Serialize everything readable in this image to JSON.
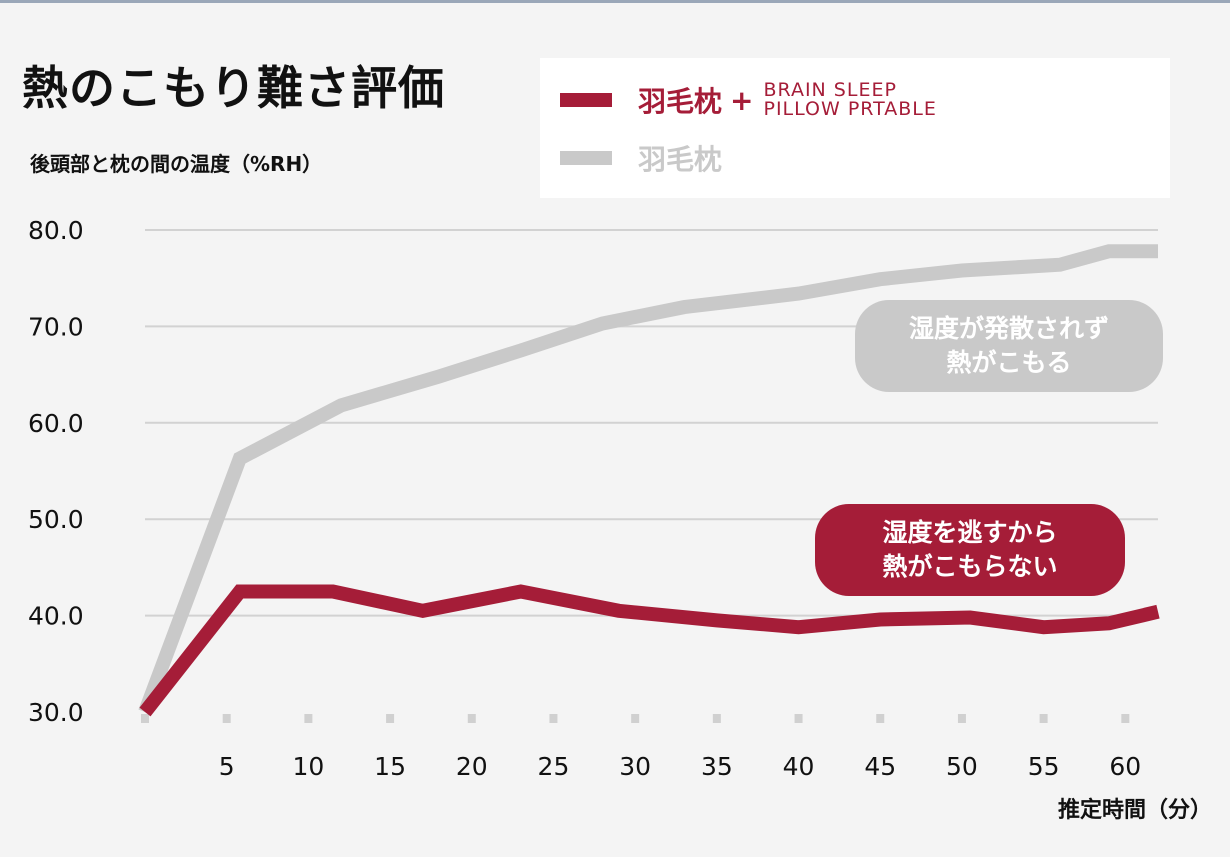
{
  "title": "熱のこもり難さ評価",
  "colors": {
    "red": "#a51d38",
    "gray": "#c9c9c9",
    "grid": "#d2d2d2",
    "tick": "#d0d0d0",
    "text": "#111111"
  },
  "legend": {
    "product": {
      "name": "羽毛枕",
      "plus": "+",
      "sub_line1": "BRAIN SLEEP",
      "sub_line2": "PILLOW PRTABLE"
    },
    "standard": {
      "name": "羽毛枕"
    }
  },
  "callouts": {
    "gray": {
      "line1": "湿度が発散されず",
      "line2": "熱がこもる"
    },
    "red": {
      "line1": "湿度を逃すから",
      "line2": "熱がこもらない"
    }
  },
  "chart_data": {
    "type": "line",
    "title": "熱のこもり難さ評価",
    "ylabel": "後頭部と枕の間の温度（%RH）",
    "xlabel": "推定時間（分）",
    "ylim": [
      30,
      80
    ],
    "yticks": [
      "80.0",
      "70.0",
      "60.0",
      "50.0",
      "40.0",
      "30.0"
    ],
    "yticks_values": [
      80,
      70,
      60,
      50,
      40,
      30
    ],
    "xlim": [
      0,
      62
    ],
    "xticks": [
      "5",
      "10",
      "15",
      "20",
      "25",
      "30",
      "35",
      "40",
      "45",
      "50",
      "55",
      "60"
    ],
    "xticks_values": [
      5,
      10,
      15,
      20,
      25,
      30,
      35,
      40,
      45,
      50,
      55,
      60
    ],
    "series": [
      {
        "name": "羽毛枕 + BRAIN SLEEP PILLOW PRTABLE",
        "color": "#a51d38",
        "x": [
          0,
          5.8,
          11.5,
          17,
          23,
          29,
          35,
          40,
          45,
          50.5,
          55,
          59,
          62
        ],
        "y": [
          30,
          42.5,
          42.5,
          40.5,
          42.5,
          40.5,
          39.5,
          38.8,
          39.6,
          39.8,
          38.8,
          39.2,
          40.4
        ]
      },
      {
        "name": "羽毛枕",
        "color": "#c9c9c9",
        "x": [
          0,
          5.8,
          12,
          18,
          23,
          28,
          33,
          40,
          45,
          50,
          56,
          59,
          62
        ],
        "y": [
          30,
          56.3,
          61.8,
          64.8,
          67.5,
          70.3,
          72,
          73.4,
          74.9,
          75.8,
          76.4,
          77.8,
          77.8
        ]
      }
    ]
  }
}
